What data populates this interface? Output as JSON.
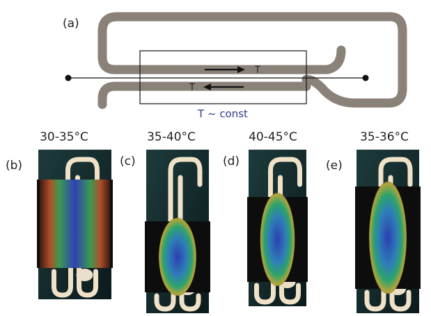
{
  "panel_a": {
    "label": "(a)",
    "arrow_labels": [
      "T",
      "T"
    ],
    "caption": "T ~ const"
  },
  "panels": [
    {
      "label": "(b)",
      "temperature": "30-35°C"
    },
    {
      "label": "(c)",
      "temperature": "35-40°C"
    },
    {
      "label": "(d)",
      "temperature": "40-45°C"
    },
    {
      "label": "(e)",
      "temperature": "35-36°C"
    }
  ]
}
